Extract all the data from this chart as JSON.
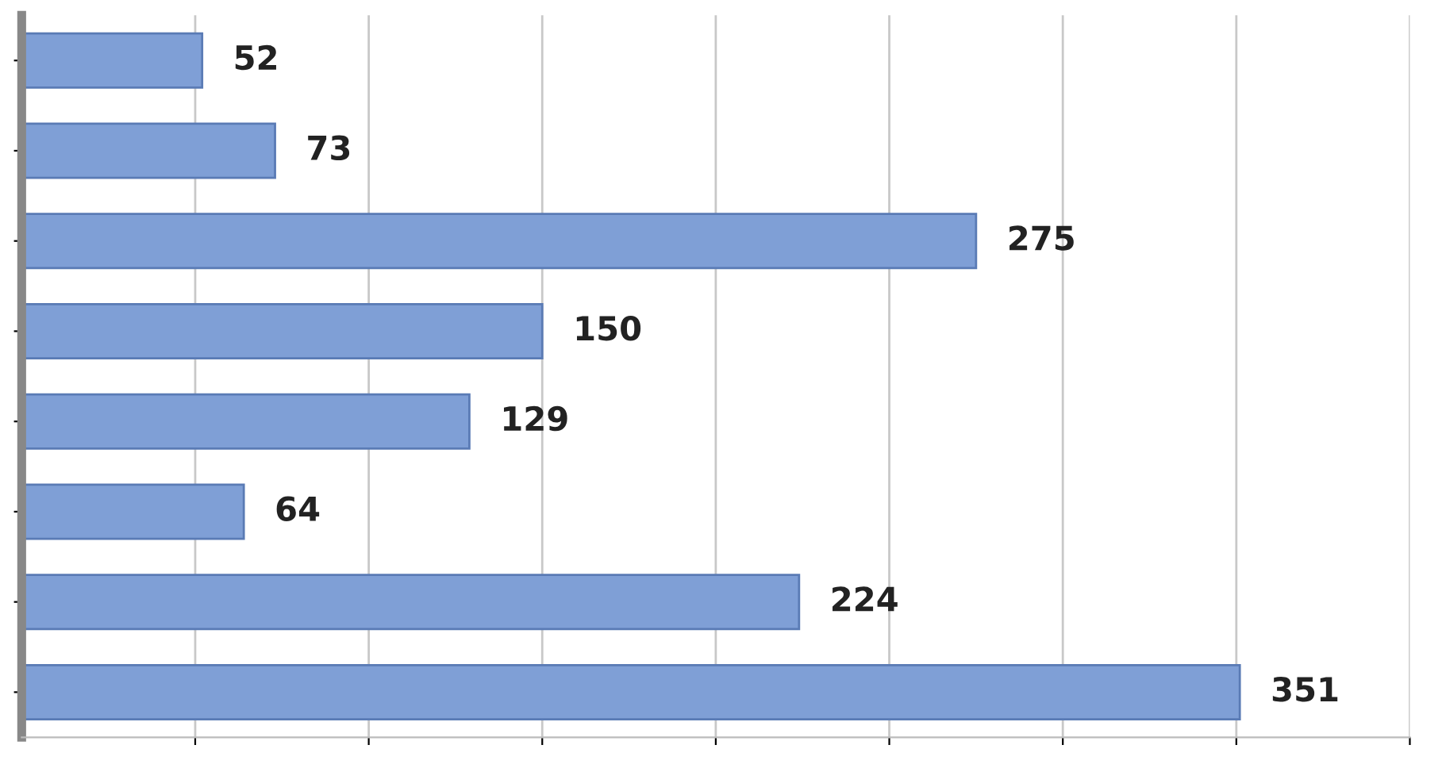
{
  "chart_data": {
    "type": "bar",
    "orientation": "horizontal",
    "categories": [
      null,
      null,
      null,
      null,
      null,
      null,
      null,
      null
    ],
    "values": [
      52,
      73,
      275,
      150,
      129,
      64,
      224,
      351
    ],
    "color": "#7f9fd6",
    "data_labels": true,
    "xlim": [
      0,
      400
    ],
    "xticks": [
      {
        "value": 50,
        "label": null
      },
      {
        "value": 100,
        "label": null
      },
      {
        "value": 150,
        "label": null
      },
      {
        "value": 200,
        "label": null
      },
      {
        "value": 250,
        "label": null
      },
      {
        "value": 300,
        "label": null
      },
      {
        "value": 350,
        "label": null
      },
      {
        "value": 400,
        "label": null
      }
    ],
    "grid": "x"
  }
}
